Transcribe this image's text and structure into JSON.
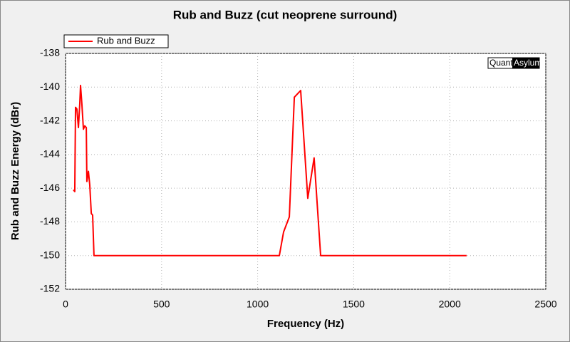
{
  "chart_data": {
    "type": "line",
    "title": "Rub and Buzz (cut neoprene surround)",
    "x_label": "Frequency (Hz)",
    "y_label": "Rub and Buzz Energy (dBr)",
    "logo": [
      "Quant",
      "Asylum"
    ],
    "x": [
      41,
      48,
      52,
      59,
      67,
      74,
      78,
      85,
      93,
      100,
      108,
      111,
      119,
      126,
      134,
      141,
      148,
      1113,
      1135,
      1165,
      1191,
      1224,
      1261,
      1294,
      1328,
      2088
    ],
    "series": [
      {
        "name": "Rub and Buzz",
        "color": "#ff0000",
        "values": [
          -146.1,
          -146.2,
          -141.2,
          -141.3,
          -142.4,
          -141,
          -139.9,
          -141,
          -142.5,
          -142.3,
          -142.4,
          -145.6,
          -145,
          -145.8,
          -147.5,
          -147.6,
          -150,
          -150,
          -148.6,
          -147.7,
          -140.6,
          -140.2,
          -146.6,
          -144.2,
          -150,
          -150
        ]
      }
    ],
    "xlim": [
      0,
      2500
    ],
    "xticks": [
      0,
      500,
      1000,
      1500,
      2000,
      2500
    ],
    "ylim": [
      -152,
      -138
    ],
    "yticks": [
      -152,
      -150,
      -148,
      -146,
      -144,
      -142,
      -140,
      -138
    ],
    "grid": true,
    "legend": "top-left"
  }
}
